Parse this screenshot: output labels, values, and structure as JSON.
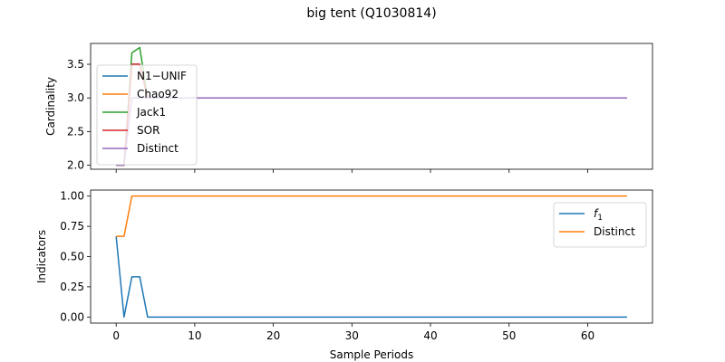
{
  "title": "big tent (Q1030814)",
  "chart_data": [
    {
      "type": "line",
      "ylabel": "Cardinality",
      "xlabel": "",
      "xlim": [
        -3.25,
        68.25
      ],
      "ylim": [
        1.94,
        3.81
      ],
      "xticks": [
        0,
        10,
        20,
        30,
        40,
        50,
        60
      ],
      "yticks": [
        2.0,
        2.5,
        3.0,
        3.5
      ],
      "ytick_labels": [
        "2.0",
        "2.5",
        "3.0",
        "3.5"
      ],
      "show_xtick_labels": false,
      "legend_location": "upper-left",
      "grid": false,
      "series": [
        {
          "name": "N1−UNIF",
          "color": "#1f77b4",
          "x": [
            0,
            1,
            2,
            3,
            4,
            65
          ],
          "y": [
            2.0,
            2.0,
            3.5,
            3.5,
            3.0,
            3.0
          ]
        },
        {
          "name": "Chao92",
          "color": "#ff7f0e",
          "x": [
            0,
            1,
            2,
            3,
            4,
            65
          ],
          "y": [
            2.0,
            2.0,
            3.5,
            3.5,
            3.0,
            3.0
          ]
        },
        {
          "name": "Jack1",
          "color": "#2ca02c",
          "x": [
            0,
            1,
            2,
            3,
            4,
            65
          ],
          "y": [
            2.0,
            2.0,
            3.67,
            3.75,
            3.0,
            3.0
          ]
        },
        {
          "name": "SOR",
          "color": "#d62728",
          "x": [
            0,
            1,
            2,
            3,
            4,
            65
          ],
          "y": [
            2.0,
            2.0,
            3.5,
            3.5,
            3.0,
            3.0
          ]
        },
        {
          "name": "Distinct",
          "color": "#9467bd",
          "x": [
            0,
            1,
            2,
            3,
            4,
            65
          ],
          "y": [
            2.0,
            2.0,
            3.0,
            3.0,
            3.0,
            3.0
          ]
        }
      ]
    },
    {
      "type": "line",
      "ylabel": "Indicators",
      "xlabel": "Sample Periods",
      "xlim": [
        -3.25,
        68.25
      ],
      "ylim": [
        -0.05,
        1.05
      ],
      "xticks": [
        0,
        10,
        20,
        30,
        40,
        50,
        60
      ],
      "xtick_labels": [
        "0",
        "10",
        "20",
        "30",
        "40",
        "50",
        "60"
      ],
      "yticks": [
        0.0,
        0.25,
        0.5,
        0.75,
        1.0
      ],
      "ytick_labels": [
        "0.00",
        "0.25",
        "0.50",
        "0.75",
        "1.00"
      ],
      "show_xtick_labels": true,
      "legend_location": "upper-right",
      "grid": false,
      "series": [
        {
          "name": "f",
          "name_subscript": "1",
          "color": "#1f77b4",
          "x": [
            0,
            1,
            2,
            3,
            4,
            65
          ],
          "y": [
            0.667,
            0.0,
            0.333,
            0.333,
            0.0,
            0.0
          ]
        },
        {
          "name": "Distinct",
          "color": "#ff7f0e",
          "x": [
            0,
            1,
            2,
            3,
            65
          ],
          "y": [
            0.667,
            0.667,
            1.0,
            1.0,
            1.0
          ]
        }
      ]
    }
  ]
}
